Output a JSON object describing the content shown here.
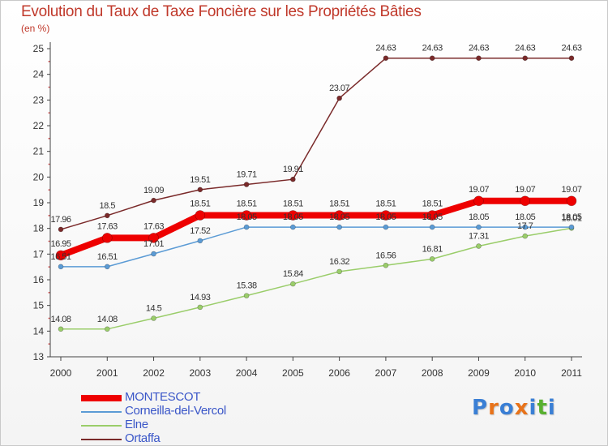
{
  "title": "Evolution du Taux de Taxe Foncière sur les Propriétés Bâties",
  "unit_label": "(en %)",
  "logo": {
    "letters": [
      "P",
      "r",
      "o",
      "x",
      "i",
      "t",
      "i"
    ],
    "colors": [
      "#3a7fd5",
      "#e8731a",
      "#3a7fd5",
      "#e8731a",
      "#3a7fd5",
      "#58b030",
      "#3a7fd5"
    ]
  },
  "chart_data": {
    "type": "line",
    "x": [
      "2000",
      "2001",
      "2002",
      "2003",
      "2004",
      "2005",
      "2006",
      "2007",
      "2008",
      "2009",
      "2010",
      "2011"
    ],
    "ylim": [
      13,
      25
    ],
    "yticks": [
      13,
      14,
      15,
      16,
      17,
      18,
      19,
      20,
      21,
      22,
      23,
      24,
      25
    ],
    "grid": false,
    "legend_position": "bottom-left",
    "series": [
      {
        "name": "MONTESCOT",
        "color": "#ee0000",
        "values": [
          16.95,
          17.63,
          17.63,
          18.51,
          18.51,
          18.51,
          18.51,
          18.51,
          18.51,
          19.07,
          19.07,
          19.07
        ],
        "labels": [
          "16.95",
          "17.63",
          "17.63",
          "18.51",
          "18.51",
          "18.51",
          "18.51",
          "18.51",
          "18.51",
          "19.07",
          "19.07",
          "19.07"
        ]
      },
      {
        "name": "Corneilla-del-Vercol",
        "color": "#5b9bd5",
        "values": [
          16.51,
          16.51,
          17.01,
          17.52,
          18.05,
          18.05,
          18.05,
          18.05,
          18.05,
          18.05,
          18.05,
          18.05
        ],
        "labels": [
          "16.51",
          "16.51",
          "17.01",
          "17.52",
          "18.05",
          "18.05",
          "18.05",
          "18.05",
          "18.05",
          "18.05",
          "18.05",
          "18.05"
        ]
      },
      {
        "name": "Elne",
        "color": "#9acd6a",
        "values": [
          14.08,
          14.08,
          14.5,
          14.93,
          15.38,
          15.84,
          16.32,
          16.56,
          16.81,
          17.31,
          17.7,
          18.01
        ],
        "labels": [
          "14.08",
          "14.08",
          "14.5",
          "14.93",
          "15.38",
          "15.84",
          "16.32",
          "16.56",
          "16.81",
          "17.31",
          "17.7",
          "18.01"
        ]
      },
      {
        "name": "Ortaffa",
        "color": "#7a2a2a",
        "values": [
          17.96,
          18.5,
          19.09,
          19.51,
          19.71,
          19.91,
          23.07,
          24.63,
          24.63,
          24.63,
          24.63,
          24.63
        ],
        "labels": [
          "17.96",
          "18.5",
          "19.09",
          "19.51",
          "19.71",
          "19.91",
          "23.07",
          "24.63",
          "24.63",
          "24.63",
          "24.63",
          "24.63"
        ]
      }
    ]
  }
}
